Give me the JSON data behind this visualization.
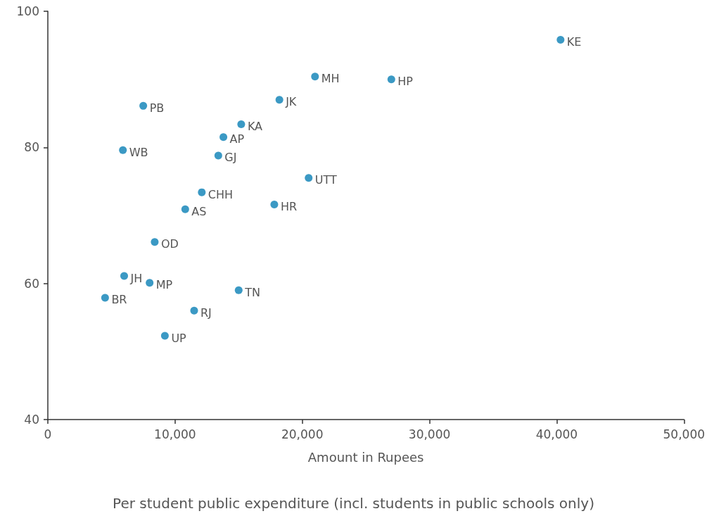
{
  "chart_data": {
    "type": "scatter",
    "xlabel": "Amount in Rupees",
    "x": [
      40300,
      21000,
      27000,
      18200,
      7500,
      15200,
      13800,
      5900,
      13400,
      20500,
      12100,
      17800,
      10800,
      8400,
      6000,
      8000,
      4500,
      15000,
      11500,
      9200
    ],
    "values": [
      95.8,
      90.4,
      90.0,
      87.0,
      86.1,
      83.4,
      81.5,
      79.6,
      78.8,
      75.5,
      73.4,
      71.6,
      70.9,
      66.1,
      61.1,
      60.1,
      57.9,
      59.0,
      56.0,
      52.3
    ],
    "color": "#0a80b5",
    "marker": "circle",
    "xlim": [
      0,
      50000
    ],
    "xticks": [
      0,
      {
        "value": 10000,
        "label": "10,000"
      },
      {
        "value": 20000,
        "label": "20,000"
      },
      {
        "value": 30000,
        "label": "30,000"
      },
      {
        "value": 40000,
        "label": "40,000"
      },
      {
        "value": 50000,
        "label": "50,000"
      }
    ],
    "ylim": [
      40,
      100
    ],
    "yticks": [
      40,
      60,
      80,
      100
    ],
    "grid": false,
    "annotations": [
      {
        "text": "KE",
        "x": 40300,
        "y": 95.8
      },
      {
        "text": "MH",
        "x": 21000,
        "y": 90.4
      },
      {
        "text": "HP",
        "x": 27000,
        "y": 90.0
      },
      {
        "text": "JK",
        "x": 18200,
        "y": 87.0
      },
      {
        "text": "PB",
        "x": 7500,
        "y": 86.1
      },
      {
        "text": "KA",
        "x": 15200,
        "y": 83.4
      },
      {
        "text": "AP",
        "x": 13800,
        "y": 81.5
      },
      {
        "text": "WB",
        "x": 5900,
        "y": 79.6
      },
      {
        "text": "GJ",
        "x": 13400,
        "y": 78.8
      },
      {
        "text": "UTT",
        "x": 20500,
        "y": 75.5
      },
      {
        "text": "CHH",
        "x": 12100,
        "y": 73.4
      },
      {
        "text": "HR",
        "x": 17800,
        "y": 71.6
      },
      {
        "text": "AS",
        "x": 10800,
        "y": 70.9
      },
      {
        "text": "OD",
        "x": 8400,
        "y": 66.1
      },
      {
        "text": "JH",
        "x": 6000,
        "y": 61.1
      },
      {
        "text": "MP",
        "x": 8000,
        "y": 60.1
      },
      {
        "text": "BR",
        "x": 4500,
        "y": 57.9
      },
      {
        "text": "TN",
        "x": 15000,
        "y": 59.0
      },
      {
        "text": "RJ",
        "x": 11500,
        "y": 56.0
      },
      {
        "text": "UP",
        "x": 9200,
        "y": 52.3
      },
      "Per student public expenditure (incl. students in public schools only)"
    ]
  }
}
